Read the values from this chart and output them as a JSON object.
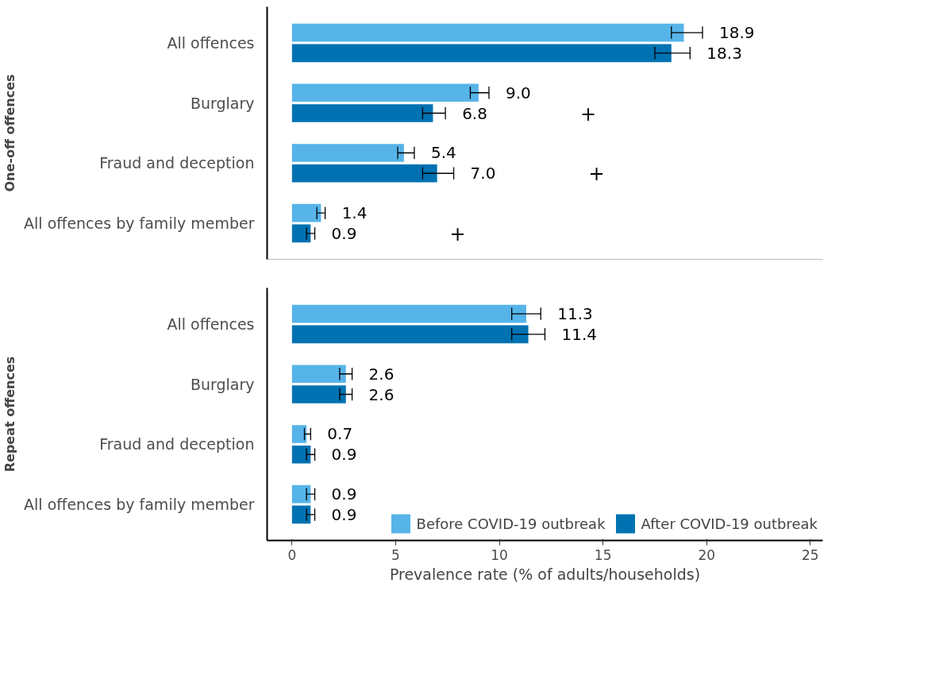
{
  "chart_data": [
    {
      "type": "bar",
      "orientation": "horizontal",
      "ylabel": "One-off offences",
      "categories": [
        "All offences",
        "Burglary",
        "Fraud and deception",
        "All offences by family member"
      ],
      "xlim": [
        -1.2,
        25.6
      ],
      "xticks": [
        0,
        5,
        10,
        15,
        20,
        25
      ],
      "tick_labels": "y",
      "grid": false,
      "series": [
        {
          "color": "#56b4e9",
          "values": [
            18.9,
            9.0,
            5.4,
            1.4
          ],
          "value_labels": [
            "18.9",
            "9.0",
            "5.4",
            "1.4"
          ],
          "errors": [
            [
              18.3,
              19.8
            ],
            [
              8.6,
              9.5
            ],
            [
              5.1,
              5.9
            ],
            [
              1.2,
              1.6
            ]
          ]
        },
        {
          "color": "#0072b2",
          "values": [
            18.3,
            6.8,
            7.0,
            0.9
          ],
          "value_labels": [
            "18.3",
            "6.8",
            "7.0",
            "0.9"
          ],
          "errors": [
            [
              17.5,
              19.2
            ],
            [
              6.3,
              7.4
            ],
            [
              6.3,
              7.8
            ],
            [
              0.7,
              1.1
            ]
          ]
        }
      ],
      "annotations": [
        "+",
        "+",
        "+"
      ]
    },
    {
      "type": "bar",
      "orientation": "horizontal",
      "ylabel": "Repeat offences",
      "xlabel": "Prevalence rate (% of adults/households)",
      "categories": [
        "All offences",
        "Burglary",
        "Fraud and deception",
        "All offences by family member"
      ],
      "xlim": [
        -1.2,
        25.6
      ],
      "xticks": [
        0,
        5,
        10,
        15,
        20,
        25
      ],
      "grid": false,
      "legend": "bottom right",
      "series": [
        {
          "name": "Before COVID-19 outbreak",
          "color": "#56b4e9",
          "values": [
            11.3,
            2.6,
            0.7,
            0.9
          ],
          "value_labels": [
            "11.3",
            "2.6",
            "0.7",
            "0.9"
          ],
          "errors": [
            [
              10.6,
              12.0
            ],
            [
              2.3,
              2.9
            ],
            [
              0.6,
              0.9
            ],
            [
              0.7,
              1.1
            ]
          ]
        },
        {
          "name": "After COVID-19 outbreak",
          "color": "#0072b2",
          "values": [
            11.4,
            2.6,
            0.9,
            0.9
          ],
          "value_labels": [
            "11.4",
            "2.6",
            "0.9",
            "0.9"
          ],
          "errors": [
            [
              10.6,
              12.2
            ],
            [
              2.3,
              2.9
            ],
            [
              0.7,
              1.1
            ],
            [
              0.7,
              1.1
            ]
          ]
        }
      ]
    }
  ]
}
